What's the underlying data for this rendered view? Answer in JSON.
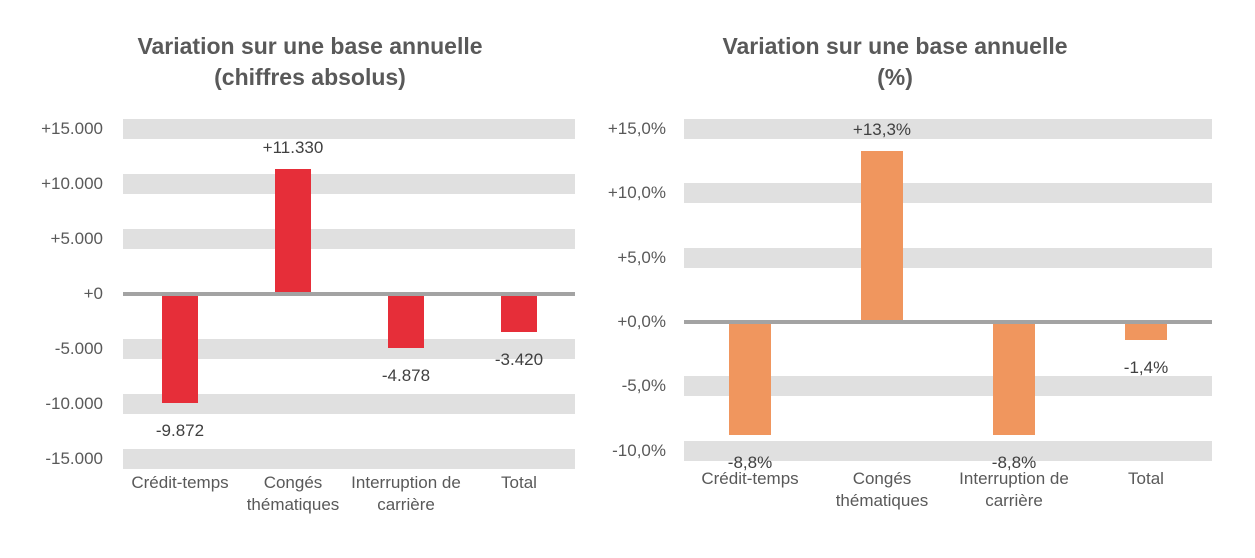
{
  "colors": {
    "bar_red": "#E62E39",
    "bar_orange": "#F0965E",
    "gridline_stripe": "#E0E0E0",
    "zero_line": "#A3A3A3",
    "title_text": "#595959",
    "axis_text": "#595959",
    "data_label_text": "#404040"
  },
  "chart_data": [
    {
      "type": "bar",
      "title": "Variation sur une base annuelle (chiffres absolus)",
      "title_lines": [
        "Variation sur une base annuelle",
        "(chiffres absolus)"
      ],
      "categories": [
        "Crédit-temps",
        "Congés thématiques",
        "Interruption de carrière",
        "Total"
      ],
      "values": [
        -9872,
        11330,
        -4878,
        -3420
      ],
      "data_labels": [
        "-9.872",
        "+11.330",
        "-4.878",
        "-3.420"
      ],
      "bar_color": "#E62E39",
      "ylim": [
        -15000,
        15000
      ],
      "yticks": [
        15000,
        10000,
        5000,
        0,
        -5000,
        -10000,
        -15000
      ],
      "ytick_labels": [
        "+15.000",
        "+10.000",
        "+5.000",
        "+0",
        "-5.000",
        "-10.000",
        "-15.000"
      ],
      "xlabel": "",
      "ylabel": "",
      "grid": "striped-horizontal",
      "legend": "none"
    },
    {
      "type": "bar",
      "title": "Variation sur une base annuelle (%)",
      "title_lines": [
        "Variation sur une base annuelle",
        "(%)"
      ],
      "categories": [
        "Crédit-temps",
        "Congés thématiques",
        "Interruption de carrière",
        "Total"
      ],
      "values": [
        -8.8,
        13.3,
        -8.8,
        -1.4
      ],
      "data_labels": [
        "-8,8%",
        "+13,3%",
        "-8,8%",
        "-1,4%"
      ],
      "bar_color": "#F0965E",
      "ylim": [
        -10,
        15
      ],
      "yticks": [
        15,
        10,
        5,
        0,
        -5,
        -10
      ],
      "ytick_labels": [
        "+15,0%",
        "+10,0%",
        "+5,0%",
        "+0,0%",
        "-5,0%",
        "-10,0%"
      ],
      "xlabel": "",
      "ylabel": "",
      "grid": "striped-horizontal",
      "legend": "none"
    }
  ]
}
